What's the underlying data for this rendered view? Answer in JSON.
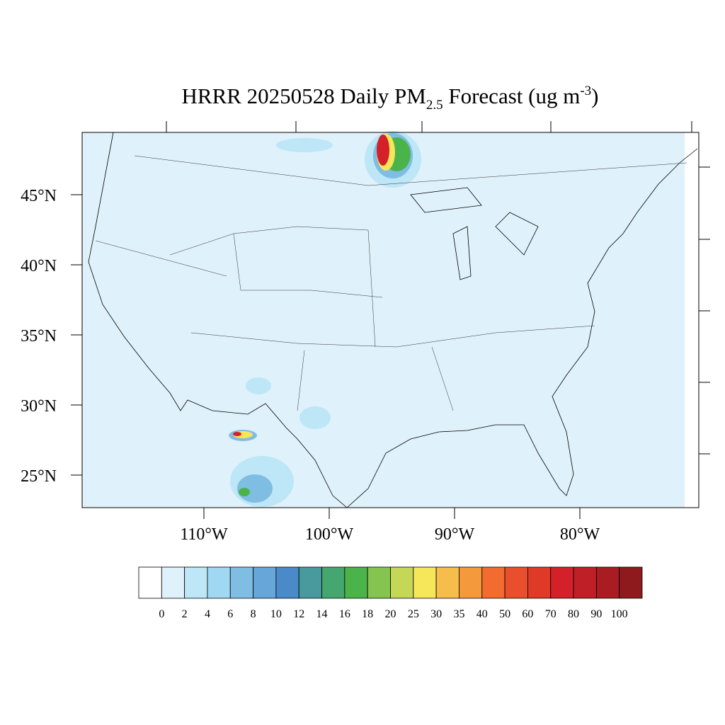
{
  "title": {
    "main": "HRRR 20250528 Daily PM",
    "subscript": "2.5",
    "rest": " Forecast (ug m",
    "superscript": "-3",
    "end": ")"
  },
  "map": {
    "lat_ticks": [
      {
        "value": 45,
        "label": "45°N"
      },
      {
        "value": 40,
        "label": "40°N"
      },
      {
        "value": 35,
        "label": "35°N"
      },
      {
        "value": 30,
        "label": "30°N"
      },
      {
        "value": 25,
        "label": "25°N"
      }
    ],
    "lon_ticks": [
      {
        "value": -110,
        "label": "110°W"
      },
      {
        "value": -100,
        "label": "100°W"
      },
      {
        "value": -90,
        "label": "90°W"
      },
      {
        "value": -80,
        "label": "80°W"
      }
    ]
  },
  "colorbar": {
    "levels": [
      0,
      2,
      4,
      6,
      8,
      10,
      12,
      14,
      16,
      18,
      20,
      25,
      30,
      35,
      40,
      50,
      60,
      70,
      80,
      90,
      100
    ],
    "colors": [
      "#ffffff",
      "#dff1fa",
      "#bde6f6",
      "#a0d8f3",
      "#80bde3",
      "#66a6d9",
      "#4a8ac8",
      "#489a9c",
      "#45a66f",
      "#4ab34a",
      "#84c44f",
      "#c5d757",
      "#f6e65a",
      "#f6bd4c",
      "#f5993d",
      "#f26b2f",
      "#e94f2c",
      "#df3a28",
      "#d42028",
      "#bf1f26",
      "#a91d22",
      "#8e1a1e"
    ]
  }
}
